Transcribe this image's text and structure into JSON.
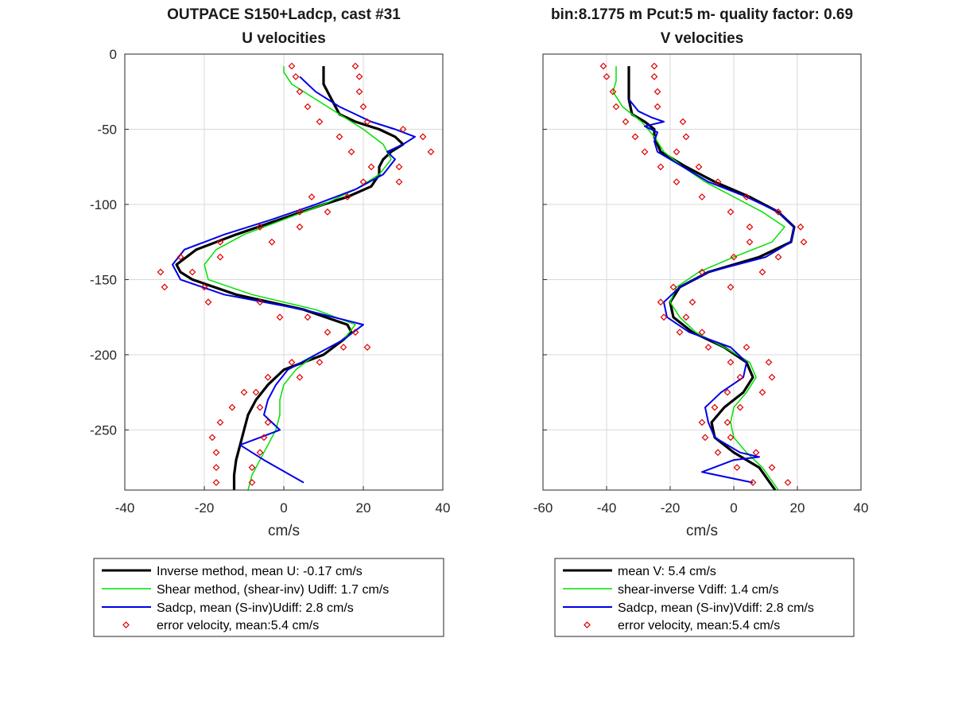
{
  "figure": {
    "left_title_line1": "OUTPACE S150+Ladcp, cast #31",
    "left_title_line2": "U velocities",
    "right_title_line1": "bin:8.1775 m  Pcut:5 m- quality factor:  0.69",
    "right_title_line2": "V velocities"
  },
  "colors": {
    "inverse": "#000000",
    "shear": "#00e000",
    "sadcp": "#0000e6",
    "error": "#e00000",
    "grid": "#d9d9d9",
    "axes": "#262626"
  },
  "chart_data": [
    {
      "type": "line",
      "title": "OUTPACE S150+Ladcp, cast #31\nU velocities",
      "xlabel": "cm/s",
      "ylabel": "",
      "xlim": [
        -40,
        40
      ],
      "ylim": [
        -290,
        0
      ],
      "xticks": [
        -40,
        -20,
        0,
        20,
        40
      ],
      "yticks": [
        0,
        -50,
        -100,
        -150,
        -200,
        -250
      ],
      "grid": true,
      "legend_position": "below",
      "legend": [
        "Inverse method, mean U:  -0.17 cm/s",
        "Shear method, (shear-inv)  Udiff:  1.7 cm/s",
        "Sadcp, mean (S-inv)Udiff: 2.8 cm/s",
        "error velocity, mean:5.4 cm/s"
      ],
      "series": [
        {
          "name": "Inverse method, mean U:  -0.17 cm/s",
          "style": "thick-line",
          "color": "#000000",
          "y": [
            -8,
            -12,
            -20,
            -30,
            -40,
            -45,
            -50,
            -55,
            -60,
            -65,
            -70,
            -75,
            -80,
            -88,
            -95,
            -100,
            -110,
            -120,
            -130,
            -140,
            -145,
            -150,
            -160,
            -170,
            -180,
            -185,
            -190,
            -200,
            -210,
            -220,
            -230,
            -240,
            -250,
            -260,
            -270,
            -280,
            -290
          ],
          "x": [
            10,
            10,
            10,
            12,
            14,
            18,
            24,
            28,
            30,
            27,
            25,
            24,
            24,
            22,
            16,
            10,
            -1,
            -12,
            -22,
            -27,
            -26,
            -23,
            -12,
            5,
            16,
            17,
            15,
            10,
            0,
            -4,
            -7,
            -9,
            -10,
            -11,
            -12,
            -12.5,
            -12.5
          ]
        },
        {
          "name": "Shear method, (shear-inv)  Udiff:  1.7 cm/s",
          "style": "thin-line",
          "color": "#00e000",
          "y": [
            -8,
            -12,
            -20,
            -30,
            -40,
            -50,
            -60,
            -70,
            -80,
            -90,
            -100,
            -110,
            -120,
            -130,
            -140,
            -150,
            -160,
            -170,
            -180,
            -190,
            -200,
            -210,
            -220,
            -230,
            -240,
            -250,
            -260,
            -270,
            -280,
            -290
          ],
          "x": [
            0,
            0,
            2,
            8,
            14,
            20,
            25,
            27,
            24,
            18,
            10,
            0,
            -10,
            -17,
            -20,
            -19,
            -8,
            8,
            18,
            15,
            8,
            3,
            0,
            -1,
            -1,
            -2,
            -4,
            -6,
            -8,
            -9
          ]
        },
        {
          "name": "Sadcp, mean (S-inv)Udiff: 2.8 cm/s",
          "style": "thin-line",
          "color": "#0000e6",
          "y": [
            -15,
            -25,
            -35,
            -45,
            -50,
            -55,
            -60,
            -65,
            -70,
            -80,
            -90,
            -100,
            -110,
            -120,
            -130,
            -140,
            -150,
            -160,
            -170,
            -180,
            -190,
            -200,
            -210,
            -220,
            -230,
            -240,
            -250,
            -255,
            -260,
            -270,
            -285
          ],
          "x": [
            4,
            8,
            14,
            22,
            28,
            33,
            30,
            26,
            28,
            25,
            18,
            8,
            -3,
            -15,
            -25,
            -28,
            -26,
            -15,
            5,
            20,
            15,
            8,
            1,
            -2,
            -4,
            -5,
            -1,
            -6,
            -11,
            -5,
            5
          ]
        },
        {
          "name": "error velocity, mean:5.4 cm/s",
          "style": "markers",
          "color": "#e00000",
          "y": [
            -8,
            -8,
            -15,
            -15,
            -25,
            -25,
            -35,
            -35,
            -45,
            -45,
            -50,
            -55,
            -55,
            -65,
            -65,
            -75,
            -75,
            -85,
            -85,
            -95,
            -95,
            -105,
            -105,
            -115,
            -115,
            -125,
            -125,
            -135,
            -135,
            -145,
            -145,
            -155,
            -155,
            -165,
            -165,
            -175,
            -175,
            -185,
            -185,
            -195,
            -195,
            -205,
            -205,
            -215,
            -215,
            -225,
            -225,
            -235,
            -235,
            -245,
            -245,
            -255,
            -255,
            -265,
            -265,
            -275,
            -275,
            -285,
            -285
          ],
          "x": [
            2,
            18,
            3,
            19,
            4,
            19,
            6,
            20,
            9,
            21,
            30,
            14,
            35,
            17,
            37,
            22,
            29,
            20,
            29,
            16,
            7,
            11,
            4,
            4,
            -6,
            -3,
            -16,
            -16,
            -26,
            -23,
            -31,
            -20,
            -30,
            -19,
            -6,
            6,
            -1,
            18,
            11,
            21,
            15,
            9,
            2,
            4,
            -4,
            -7,
            -10,
            -6,
            -13,
            -4,
            -16,
            -5,
            -18,
            -6,
            -17,
            -8,
            -17,
            -8,
            -17
          ]
        }
      ]
    },
    {
      "type": "line",
      "title": "bin:8.1775 m  Pcut:5 m- quality factor:  0.69\nV velocities",
      "xlabel": "cm/s",
      "ylabel": "",
      "xlim": [
        -60,
        40
      ],
      "ylim": [
        -290,
        0
      ],
      "xticks": [
        -60,
        -40,
        -20,
        0,
        20,
        40
      ],
      "yticks": [
        0,
        -50,
        -100,
        -150,
        -200,
        -250
      ],
      "grid": true,
      "legend_position": "below",
      "legend": [
        "mean V:  5.4 cm/s",
        "shear-inverse Vdiff:  1.4 cm/s",
        "Sadcp, mean (S-inv)Vdiff: 2.8 cm/s",
        "error velocity, mean:5.4 cm/s"
      ],
      "series": [
        {
          "name": "mean V:  5.4 cm/s",
          "style": "thick-line",
          "color": "#000000",
          "y": [
            -8,
            -20,
            -30,
            -40,
            -45,
            -50,
            -55,
            -60,
            -65,
            -75,
            -85,
            -95,
            -105,
            -115,
            -125,
            -135,
            -145,
            -155,
            -165,
            -175,
            -185,
            -195,
            -205,
            -215,
            -225,
            -235,
            -245,
            -255,
            -265,
            -275,
            -290
          ],
          "x": [
            -33,
            -33,
            -33,
            -32,
            -28,
            -25,
            -25,
            -24,
            -23,
            -15,
            -6,
            5,
            14,
            19,
            18,
            8,
            -8,
            -17,
            -20,
            -19,
            -13,
            -3,
            4,
            6,
            3,
            -3,
            -7,
            -6,
            0,
            8,
            13
          ]
        },
        {
          "name": "shear-inverse Vdiff:  1.4 cm/s",
          "style": "thin-line",
          "color": "#00e000",
          "y": [
            -8,
            -18,
            -25,
            -35,
            -45,
            -55,
            -65,
            -75,
            -85,
            -95,
            -105,
            -115,
            -125,
            -135,
            -145,
            -155,
            -165,
            -175,
            -185,
            -195,
            -205,
            -215,
            -225,
            -235,
            -245,
            -255,
            -265,
            -275,
            -290
          ],
          "x": [
            -37,
            -37,
            -38,
            -35,
            -29,
            -25,
            -22,
            -16,
            -9,
            0,
            9,
            16,
            12,
            0,
            -11,
            -18,
            -20,
            -17,
            -12,
            -3,
            5,
            7,
            4,
            0,
            -1,
            0,
            4,
            9,
            14
          ]
        },
        {
          "name": "Sadcp, mean (S-inv)Vdiff: 2.8 cm/s",
          "style": "thin-line",
          "color": "#0000e6",
          "y": [
            -30,
            -38,
            -42,
            -45,
            -48,
            -52,
            -58,
            -65,
            -75,
            -85,
            -95,
            -105,
            -115,
            -125,
            -135,
            -145,
            -155,
            -165,
            -175,
            -185,
            -195,
            -205,
            -215,
            -225,
            -235,
            -245,
            -255,
            -265,
            -268,
            -270,
            -278,
            -285
          ],
          "x": [
            -33,
            -30,
            -26,
            -22,
            -28,
            -24,
            -25,
            -24,
            -16,
            -8,
            4,
            14,
            19,
            18,
            10,
            -8,
            -17,
            -22,
            -21,
            -14,
            -1,
            4,
            3,
            -4,
            -9,
            -8,
            -6,
            2,
            8,
            0,
            -10,
            6
          ]
        },
        {
          "name": "error velocity, mean:5.4 cm/s",
          "style": "markers",
          "color": "#e00000",
          "y": [
            -8,
            -8,
            -15,
            -15,
            -25,
            -25,
            -35,
            -35,
            -45,
            -45,
            -55,
            -55,
            -65,
            -65,
            -75,
            -75,
            -85,
            -85,
            -95,
            -95,
            -105,
            -105,
            -115,
            -115,
            -125,
            -125,
            -135,
            -135,
            -145,
            -145,
            -155,
            -155,
            -165,
            -165,
            -175,
            -175,
            -185,
            -185,
            -195,
            -195,
            -205,
            -205,
            -215,
            -215,
            -225,
            -225,
            -235,
            -235,
            -245,
            -245,
            -255,
            -255,
            -265,
            -265,
            -275,
            -275,
            -285,
            -285
          ],
          "x": [
            -41,
            -25,
            -40,
            -25,
            -38,
            -24,
            -37,
            -24,
            -34,
            -16,
            -31,
            -15,
            -28,
            -18,
            -23,
            -11,
            -18,
            -5,
            -10,
            4,
            -1,
            14,
            5,
            21,
            5,
            22,
            0,
            14,
            -10,
            9,
            -19,
            -1,
            -23,
            -13,
            -22,
            -15,
            -17,
            -10,
            -8,
            4,
            -1,
            11,
            2,
            12,
            -2,
            9,
            -6,
            2,
            -10,
            -2,
            -9,
            -1,
            -5,
            7,
            1,
            12,
            6,
            17
          ]
        }
      ]
    }
  ]
}
